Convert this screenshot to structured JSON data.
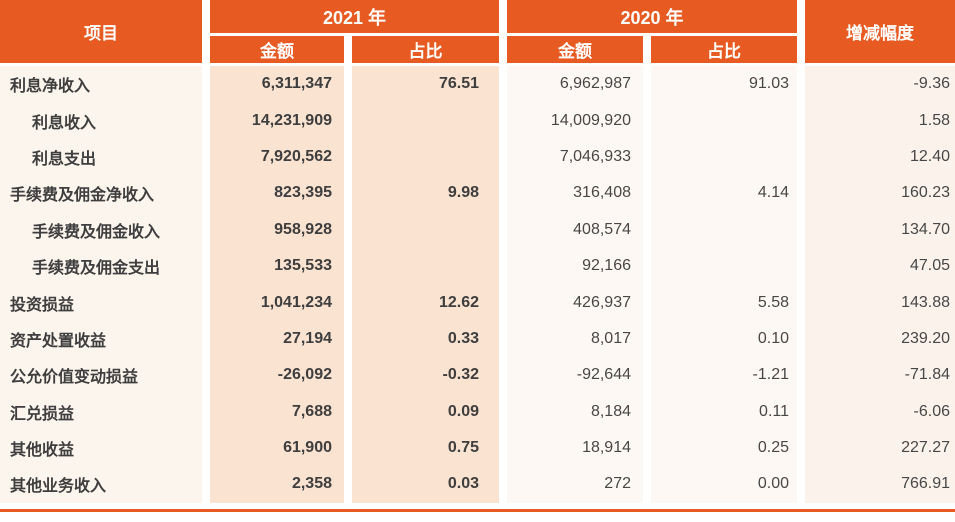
{
  "colors": {
    "header_orange": "#E75B22",
    "col_2021_bg": "#FAE3D1",
    "col_item_bg": "#FCF5EE",
    "col_2020_bg": "#FDF8F3",
    "col_change_bg": "#FBF3EB",
    "bottom_rule": "#E75B22"
  },
  "header": {
    "col_item": "项目",
    "group_2021": "2021 年",
    "group_2020": "2020 年",
    "col_change": "增减幅度",
    "sub_amount_2021": "金额",
    "sub_ratio_2021": "占比",
    "sub_amount_2020": "金额",
    "sub_ratio_2020": "占比"
  },
  "table": {
    "rows": [
      {
        "label": "利息净收入",
        "indent": false,
        "a2021": "6,311,347",
        "r2021": "76.51",
        "a2020": "6,962,987",
        "r2020": "91.03",
        "change": "-9.36"
      },
      {
        "label": "利息收入",
        "indent": true,
        "a2021": "14,231,909",
        "r2021": "",
        "a2020": "14,009,920",
        "r2020": "",
        "change": "1.58"
      },
      {
        "label": "利息支出",
        "indent": true,
        "a2021": "7,920,562",
        "r2021": "",
        "a2020": "7,046,933",
        "r2020": "",
        "change": "12.40"
      },
      {
        "label": "手续费及佣金净收入",
        "indent": false,
        "a2021": "823,395",
        "r2021": "9.98",
        "a2020": "316,408",
        "r2020": "4.14",
        "change": "160.23"
      },
      {
        "label": "手续费及佣金收入",
        "indent": true,
        "a2021": "958,928",
        "r2021": "",
        "a2020": "408,574",
        "r2020": "",
        "change": "134.70"
      },
      {
        "label": "手续费及佣金支出",
        "indent": true,
        "a2021": "135,533",
        "r2021": "",
        "a2020": "92,166",
        "r2020": "",
        "change": "47.05"
      },
      {
        "label": "投资损益",
        "indent": false,
        "a2021": "1,041,234",
        "r2021": "12.62",
        "a2020": "426,937",
        "r2020": "5.58",
        "change": "143.88"
      },
      {
        "label": "资产处置收益",
        "indent": false,
        "a2021": "27,194",
        "r2021": "0.33",
        "a2020": "8,017",
        "r2020": "0.10",
        "change": "239.20"
      },
      {
        "label": "公允价值变动损益",
        "indent": false,
        "a2021": "-26,092",
        "r2021": "-0.32",
        "a2020": "-92,644",
        "r2020": "-1.21",
        "change": "-71.84"
      },
      {
        "label": "汇兑损益",
        "indent": false,
        "a2021": "7,688",
        "r2021": "0.09",
        "a2020": "8,184",
        "r2020": "0.11",
        "change": "-6.06"
      },
      {
        "label": "其他收益",
        "indent": false,
        "a2021": "61,900",
        "r2021": "0.75",
        "a2020": "18,914",
        "r2020": "0.25",
        "change": "227.27"
      },
      {
        "label": "其他业务收入",
        "indent": false,
        "a2021": "2,358",
        "r2021": "0.03",
        "a2020": "272",
        "r2020": "0.00",
        "change": "766.91"
      }
    ]
  }
}
